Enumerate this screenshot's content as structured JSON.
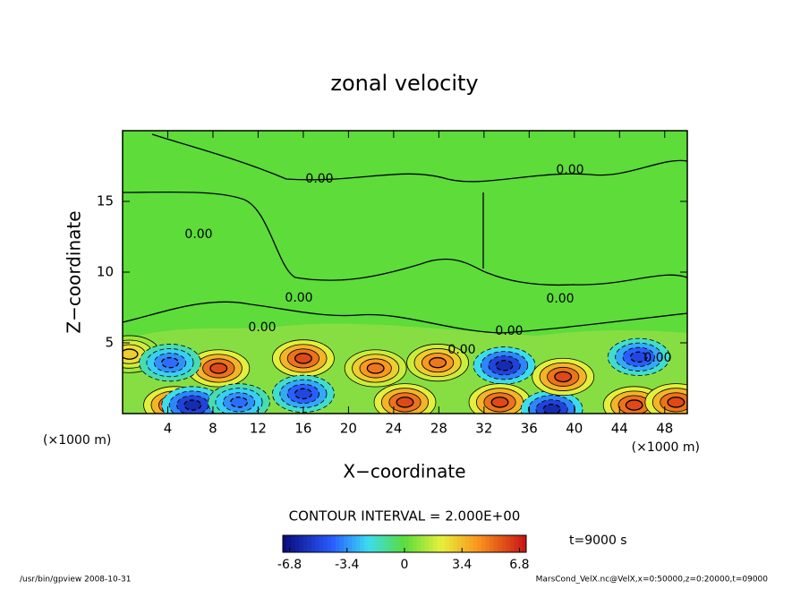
{
  "chart_data": {
    "type": "contour",
    "title": "zonal velocity",
    "x_label": "X−coordinate",
    "y_label": "Z−coordinate",
    "x_unit": "(×1000 m)",
    "y_unit": "(×1000 m)",
    "xlim": [
      0,
      50
    ],
    "xticks": [
      4,
      8,
      12,
      16,
      20,
      24,
      28,
      32,
      36,
      40,
      44,
      48
    ],
    "ylim": [
      0,
      20
    ],
    "yticks": [
      5,
      10,
      15
    ],
    "contour_interval": "CONTOUR INTERVAL = 2.000E+00",
    "time_label": "t=9000 s",
    "colorbar_lim": [
      -7.2,
      7.2
    ],
    "colorbar_ticks": [
      -6.8,
      -3.4,
      0,
      3.4,
      6.8
    ],
    "contour_labels": [
      "0.00",
      "0.00",
      "0.00",
      "0.00",
      "0.00",
      "0.00",
      "0.00",
      "0.00",
      "0.00"
    ],
    "footer_left": "/usr/bin/gpview   2008-10-31",
    "footer_right": "MarsCond_VelX.nc@VelX,x=0:50000,z=0:20000,t=09000",
    "extrema": [
      {
        "x": 4.6,
        "z": 0.6,
        "value": 6
      },
      {
        "x": 6.2,
        "z": 0.6,
        "value": -6
      },
      {
        "x": 8.5,
        "z": 3.2,
        "value": 6
      },
      {
        "x": 0.6,
        "z": 4.2,
        "value": 3
      },
      {
        "x": 4.2,
        "z": 3.6,
        "value": -4
      },
      {
        "x": 10.3,
        "z": 0.8,
        "value": -4
      },
      {
        "x": 16,
        "z": 3.9,
        "value": 6
      },
      {
        "x": 16,
        "z": 1.4,
        "value": -5
      },
      {
        "x": 22.4,
        "z": 3.2,
        "value": 5
      },
      {
        "x": 25,
        "z": 0.8,
        "value": 6
      },
      {
        "x": 27.9,
        "z": 3.6,
        "value": 5
      },
      {
        "x": 33.8,
        "z": 3.4,
        "value": -6
      },
      {
        "x": 33.4,
        "z": 0.8,
        "value": 6
      },
      {
        "x": 38,
        "z": 0.3,
        "value": -6
      },
      {
        "x": 39,
        "z": 2.6,
        "value": 6
      },
      {
        "x": 45.7,
        "z": 4,
        "value": -5
      },
      {
        "x": 45.3,
        "z": 0.6,
        "value": 6
      },
      {
        "x": 49,
        "z": 0.8,
        "value": 6
      }
    ]
  }
}
